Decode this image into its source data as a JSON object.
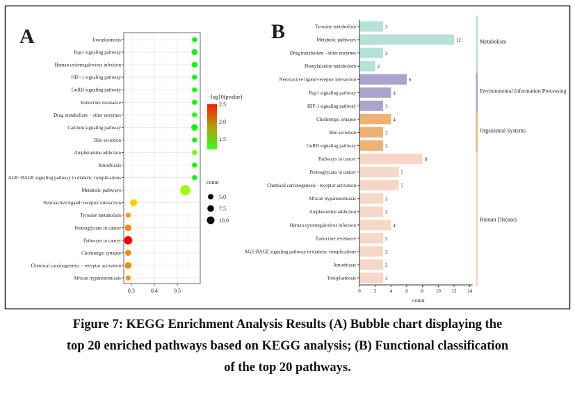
{
  "caption": {
    "line1": "Figure 7: KEGG Enrichment Analysis Results (A) Bubble chart displaying the",
    "line2": "top 20 enriched pathways based on KEGG analysis; (B) Functional classification",
    "line3": "of the top 20 pathways."
  },
  "chart_data": [
    {
      "type": "scatter",
      "panel_label": "A",
      "title": "",
      "xlabel": "",
      "xlim": [
        0.267,
        0.6
      ],
      "xticks": [
        "0.3",
        "0.4",
        "0.5"
      ],
      "xtick_values": [
        0.3,
        0.4,
        0.5
      ],
      "grid": true,
      "color_legend": {
        "title": "−log10(pvalue)",
        "ticks": [
          "2.5",
          "2.0",
          "1.5"
        ],
        "tick_values": [
          2.5,
          2.0,
          1.5
        ],
        "range": [
          1.2,
          2.5
        ],
        "low_color": "#33ff22",
        "mid_color": "#b0a000",
        "high_color": "#ff1a00"
      },
      "size_legend": {
        "title": "count",
        "entries": [
          "5.0",
          "7.5",
          "10.0"
        ],
        "values": [
          5,
          7.5,
          10
        ]
      },
      "points": [
        {
          "pathway": "Toxoplasmosis",
          "x": 0.575,
          "count": 3,
          "neglog10p": 1.2
        },
        {
          "pathway": "Rap1 signaling pathway",
          "x": 0.575,
          "count": 4,
          "neglog10p": 1.2
        },
        {
          "pathway": "Human cytomegalovirus infection",
          "x": 0.575,
          "count": 4,
          "neglog10p": 1.2
        },
        {
          "pathway": "HIF−1 signaling pathway",
          "x": 0.575,
          "count": 3,
          "neglog10p": 1.2
        },
        {
          "pathway": "GnRH signaling pathway",
          "x": 0.575,
          "count": 3,
          "neglog10p": 1.25
        },
        {
          "pathway": "Endocrine resistance",
          "x": 0.575,
          "count": 3,
          "neglog10p": 1.2
        },
        {
          "pathway": "Drug metabolism − other enzymes",
          "x": 0.575,
          "count": 3,
          "neglog10p": 1.3
        },
        {
          "pathway": "Calcium signaling pathway",
          "x": 0.575,
          "count": 5,
          "neglog10p": 1.2
        },
        {
          "pathway": "Bile secretion",
          "x": 0.575,
          "count": 3,
          "neglog10p": 1.22
        },
        {
          "pathway": "Amphetamine addiction",
          "x": 0.575,
          "count": 3,
          "neglog10p": 1.5
        },
        {
          "pathway": "Amoebiasis",
          "x": 0.575,
          "count": 3,
          "neglog10p": 1.2
        },
        {
          "pathway": "AGE−RAGE signaling pathway in diabetic complications",
          "x": 0.575,
          "count": 3,
          "neglog10p": 1.2
        },
        {
          "pathway": "Metabolic pathways",
          "x": 0.535,
          "count": 12,
          "neglog10p": 1.6
        },
        {
          "pathway": "Neuroactive ligand−receptor interaction",
          "x": 0.31,
          "count": 6,
          "neglog10p": 1.95
        },
        {
          "pathway": "Tyrosine metabolism",
          "x": 0.286,
          "count": 3,
          "neglog10p": 2.1
        },
        {
          "pathway": "Proteoglycans in cancer",
          "x": 0.286,
          "count": 5,
          "neglog10p": 2.15
        },
        {
          "pathway": "Pathways in cancer",
          "x": 0.286,
          "count": 8,
          "neglog10p": 2.5
        },
        {
          "pathway": "Cholinergic synapse",
          "x": 0.286,
          "count": 4,
          "neglog10p": 2.15
        },
        {
          "pathway": "Chemical carcinogenesis − receptor activation",
          "x": 0.286,
          "count": 5,
          "neglog10p": 2.15
        },
        {
          "pathway": "African trypanosomiasis",
          "x": 0.286,
          "count": 3,
          "neglog10p": 2.1
        }
      ]
    },
    {
      "type": "bar",
      "orientation": "horizontal",
      "panel_label": "B",
      "xlabel": "count",
      "xlim": [
        0,
        14
      ],
      "xticks": [
        "0",
        "2",
        "4",
        "6",
        "8",
        "10",
        "12",
        "14"
      ],
      "xtick_values": [
        0,
        2,
        4,
        6,
        8,
        10,
        12,
        14
      ],
      "classes": [
        {
          "name": "Metabolism",
          "color": "#b5e2d8",
          "span": 4
        },
        {
          "name": "Environmental Information Processing",
          "color": "#aba4cf",
          "span": 3
        },
        {
          "name": "Organismal Systems",
          "color": "#f0b272",
          "span": 3
        },
        {
          "name": "Human Diseases",
          "color": "#f7d7c7",
          "span": 10
        }
      ],
      "bars": [
        {
          "pathway": "Tyrosine metabolism",
          "value": 3,
          "class": 0
        },
        {
          "pathway": "Metabolic pathways",
          "value": 12,
          "class": 0
        },
        {
          "pathway": "Drug metabolism - other enzymes",
          "value": 3,
          "class": 0
        },
        {
          "pathway": "Phenylalanine metabolism",
          "value": 2,
          "class": 0
        },
        {
          "pathway": "Neuroactive ligand-receptor interaction",
          "value": 6,
          "class": 1
        },
        {
          "pathway": "Rap1 signaling pathway",
          "value": 4,
          "class": 1
        },
        {
          "pathway": "HIF-1 signaling pathway",
          "value": 3,
          "class": 1
        },
        {
          "pathway": "Cholinergic synapse",
          "value": 4,
          "class": 2
        },
        {
          "pathway": "Bile secretion",
          "value": 3,
          "class": 2
        },
        {
          "pathway": "GnRH signaling pathway",
          "value": 3,
          "class": 2
        },
        {
          "pathway": "Pathways in cancer",
          "value": 8,
          "class": 3
        },
        {
          "pathway": "Proteoglycans in cancer",
          "value": 5,
          "class": 3
        },
        {
          "pathway": "Chemical carcinogenesis - receptor activation",
          "value": 5,
          "class": 3
        },
        {
          "pathway": "African trypanosomiasis",
          "value": 3,
          "class": 3
        },
        {
          "pathway": "Amphetamine addiction",
          "value": 3,
          "class": 3
        },
        {
          "pathway": "Human cytomegalovirus infection",
          "value": 4,
          "class": 3
        },
        {
          "pathway": "Endocrine resistance",
          "value": 3,
          "class": 3
        },
        {
          "pathway": "AGE-RAGE signaling pathway in diabetic complications",
          "value": 3,
          "class": 3
        },
        {
          "pathway": "Amoebiasis",
          "value": 3,
          "class": 3
        },
        {
          "pathway": "Toxoplasmosis",
          "value": 3,
          "class": 3
        }
      ]
    }
  ]
}
